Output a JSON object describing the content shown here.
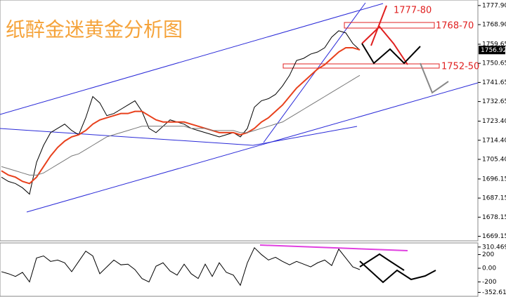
{
  "chart_data": [
    {
      "type": "line",
      "title": "纸醉金迷黄金分析图",
      "series": [
        {
          "name": "price",
          "color": "#000000",
          "values": [
            1697,
            1695,
            1694,
            1692,
            1689,
            1704,
            1712,
            1718,
            1720,
            1722,
            1719,
            1717,
            1725,
            1735,
            1732,
            1726,
            1727,
            1729,
            1731,
            1733,
            1728,
            1720,
            1718,
            1721,
            1724,
            1723,
            1722,
            1720,
            1719,
            1718,
            1717,
            1716,
            1717,
            1718,
            1716,
            1720,
            1730,
            1733,
            1734,
            1736,
            1740,
            1745,
            1752,
            1753,
            1755,
            1756,
            1758,
            1763,
            1766,
            1765,
            1760,
            1756.92
          ]
        },
        {
          "name": "ma-fast",
          "color": "#e8401c",
          "values": [
            1700,
            1698,
            1697,
            1695,
            1694,
            1697,
            1702,
            1707,
            1711,
            1714,
            1716,
            1717,
            1719,
            1722,
            1724,
            1725,
            1726,
            1727,
            1727,
            1728,
            1728,
            1726,
            1724,
            1723,
            1723,
            1723,
            1723,
            1722,
            1721,
            1720,
            1719,
            1718,
            1718,
            1718,
            1717,
            1718,
            1720,
            1723,
            1725,
            1728,
            1731,
            1735,
            1739,
            1742,
            1745,
            1748,
            1750,
            1753,
            1756,
            1758,
            1758,
            1757
          ]
        },
        {
          "name": "ma-slow",
          "color": "#777777",
          "values": [
            1702,
            1701,
            1700,
            1699,
            1698,
            1698,
            1699,
            1701,
            1703,
            1705,
            1707,
            1708,
            1710,
            1712,
            1714,
            1716,
            1717,
            1718,
            1719,
            1720,
            1721,
            1721,
            1721,
            1721,
            1721,
            1721,
            1721,
            1720,
            1720,
            1720,
            1719,
            1719,
            1719,
            1719,
            1718,
            1718,
            1719,
            1720,
            1721,
            1722,
            1723,
            1725,
            1727,
            1729,
            1731,
            1733,
            1735,
            1737,
            1739,
            1741,
            1743,
            1745
          ]
        }
      ],
      "ylim": [
        1667,
        1780.5
      ],
      "yticks": [
        {
          "value": 1777.9,
          "label": "1777.90"
        },
        {
          "value": 1768.9,
          "label": "1768.90"
        },
        1759.65,
        1750.65,
        1741.65,
        1732.65,
        {
          "value": 1723.4,
          "label": "1723.40"
        },
        {
          "value": 1714.4,
          "label": "1714.40"
        },
        {
          "value": 1705.4,
          "label": "1705.40"
        },
        1696.15,
        1687.15,
        1678.15,
        1669.15
      ],
      "last_price": 1756.92,
      "annotations": [
        "1777-80",
        "1768-70",
        "1752-50"
      ]
    },
    {
      "type": "line",
      "series": [
        {
          "name": "cci",
          "color": "#000000",
          "values": [
            -50,
            -80,
            -120,
            -60,
            -200,
            150,
            180,
            100,
            120,
            80,
            -50,
            100,
            250,
            180,
            -80,
            20,
            120,
            50,
            60,
            -20,
            -150,
            -200,
            30,
            80,
            -40,
            -100,
            60,
            -80,
            -150,
            60,
            -120,
            80,
            -60,
            -100,
            -250,
            80,
            300,
            200,
            120,
            160,
            100,
            50,
            100,
            60,
            20,
            80,
            120,
            40,
            280,
            150,
            20,
            -20
          ]
        }
      ],
      "ylim": [
        -410,
        370
      ],
      "yticks": [
        310.4691,
        200,
        {
          "value": 0,
          "label": "0.00"
        },
        -200,
        -352.6173
      ]
    }
  ]
}
